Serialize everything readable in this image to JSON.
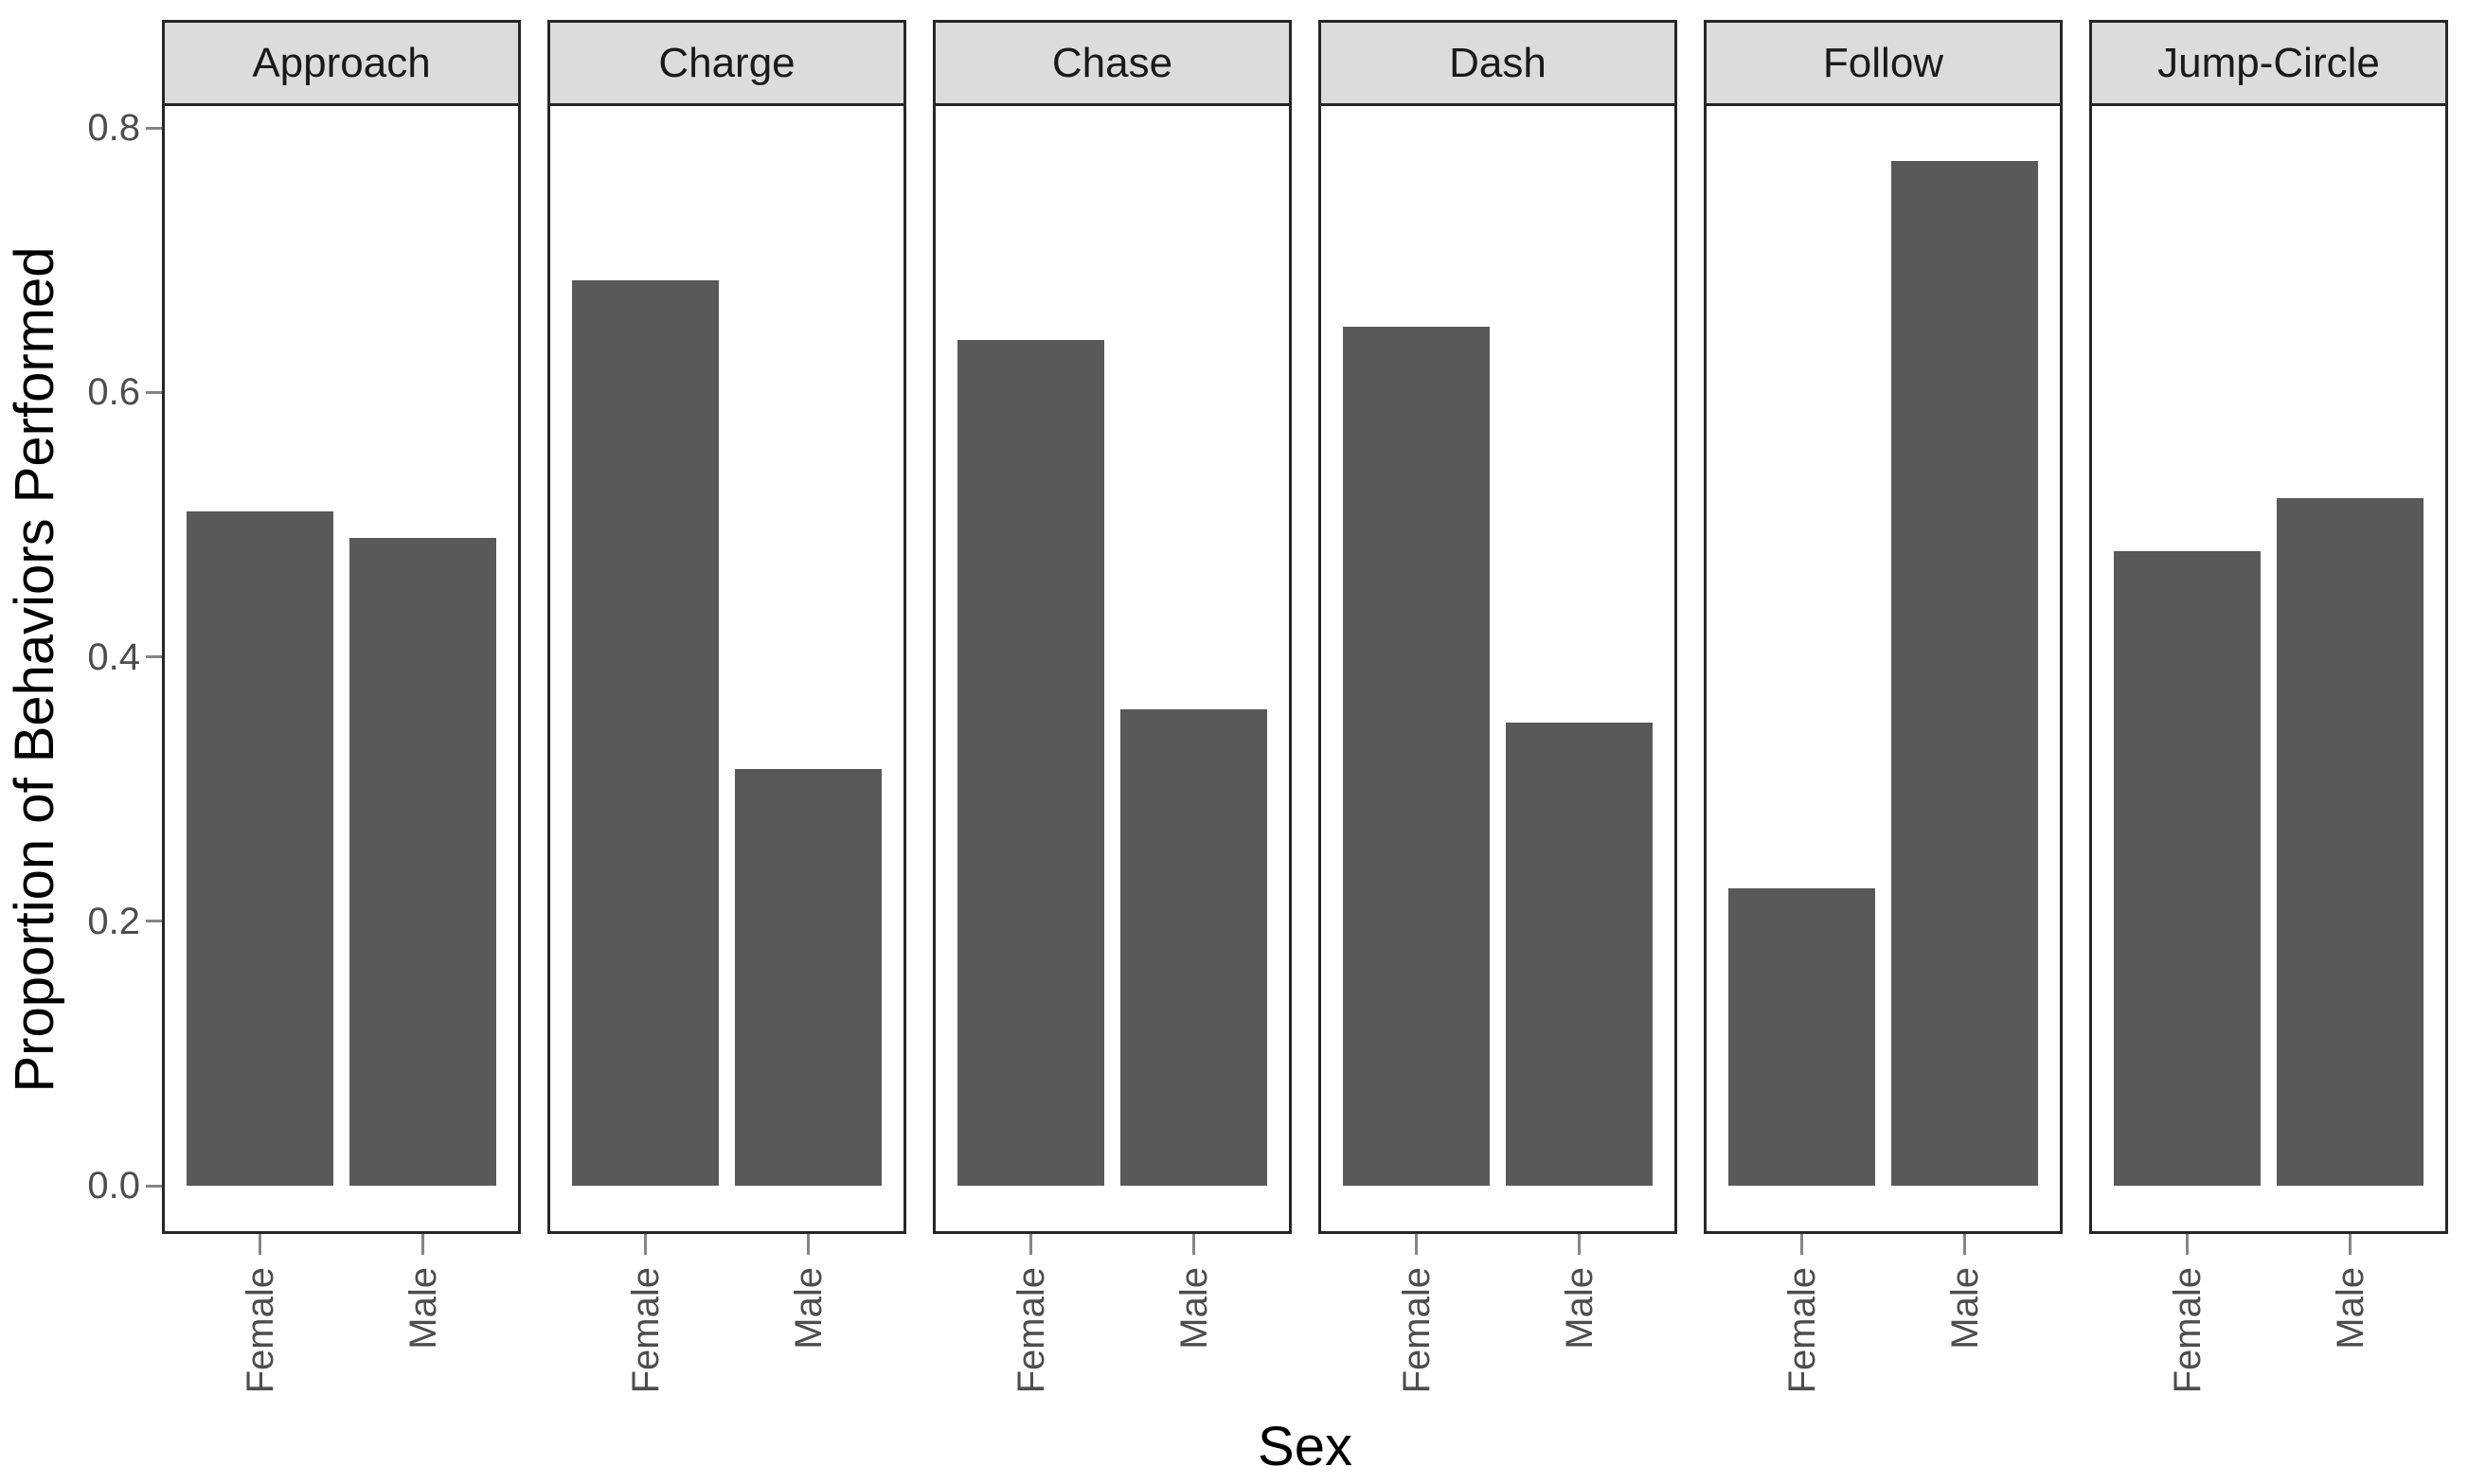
{
  "figure": {
    "background": "#ffffff",
    "panel_border_color": "#262626",
    "tick_mark_color": "#858585",
    "tick_label_color": "#4d4d4d",
    "axis_title_color": "#000000",
    "strip_text_color": "#1a1a1a"
  },
  "chart_data": {
    "type": "bar",
    "title": "",
    "xlabel": "Sex",
    "ylabel": "Proportion of Behaviors Performed",
    "categories": [
      "Female",
      "Male"
    ],
    "facets": [
      {
        "label": "Approach",
        "values": [
          0.51,
          0.49
        ]
      },
      {
        "label": "Charge",
        "values": [
          0.685,
          0.315
        ]
      },
      {
        "label": "Chase",
        "values": [
          0.64,
          0.36
        ]
      },
      {
        "label": "Dash",
        "values": [
          0.65,
          0.35
        ]
      },
      {
        "label": "Follow",
        "values": [
          0.225,
          0.775
        ]
      },
      {
        "label": "Jump-Circle",
        "values": [
          0.48,
          0.52
        ]
      }
    ],
    "ytick_labels": [
      "0.0",
      "0.2",
      "0.4",
      "0.6",
      "0.8"
    ],
    "ytick_values": [
      0.0,
      0.2,
      0.4,
      0.6,
      0.8
    ],
    "ylim": [
      -0.039,
      0.815
    ],
    "grid": false,
    "legend": "none",
    "bar_color": "#595959",
    "strip_background": "#DCDCDC"
  }
}
